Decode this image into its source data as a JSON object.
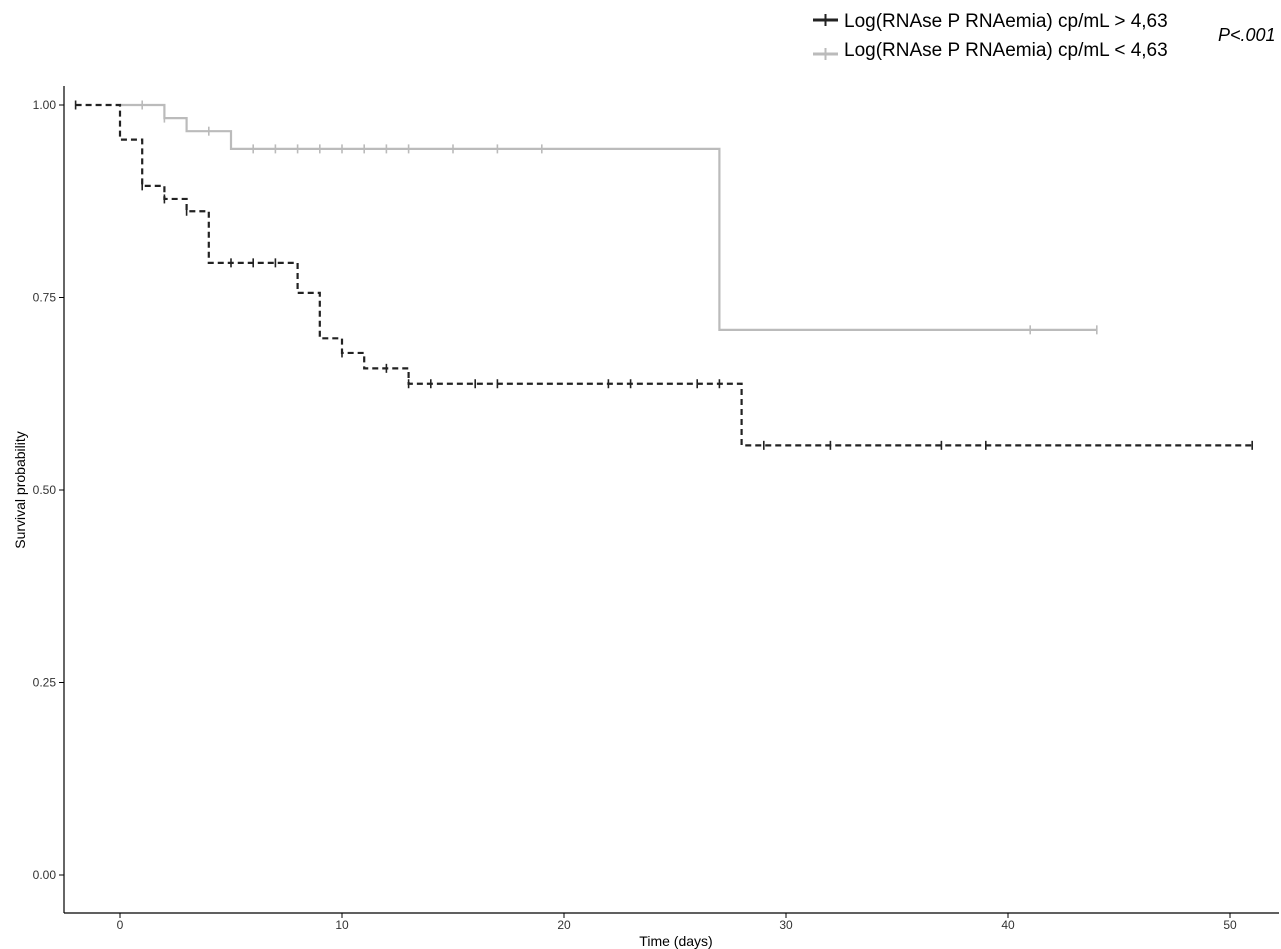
{
  "chart_data": {
    "type": "line",
    "subtype": "kaplan-meier-step",
    "xlabel": "Time (days)",
    "ylabel": "Survival probability",
    "xlim": [
      -2.5,
      52
    ],
    "ylim": [
      -0.05,
      1.025
    ],
    "x_ticks": [
      0,
      10,
      20,
      30,
      40,
      50
    ],
    "x_tick_labels": [
      "0",
      "10",
      "20",
      "30",
      "40",
      "50"
    ],
    "y_ticks": [
      0,
      0.25,
      0.5,
      0.75,
      1.0
    ],
    "y_tick_labels": [
      "0.00",
      "0.25",
      "0.50",
      "0.75",
      "1.00"
    ],
    "grid": false,
    "legend_position": "top-right",
    "annotation": "P<.001",
    "series": [
      {
        "name": "Log(RNAse P RNAemia) cp/mL > 4,63",
        "color": "#222222",
        "line_style": "dashed",
        "steps": [
          [
            -2,
            1.0
          ],
          [
            0,
            0.955
          ],
          [
            1,
            0.895
          ],
          [
            2,
            0.878
          ],
          [
            3,
            0.862
          ],
          [
            4,
            0.795
          ],
          [
            8,
            0.756
          ],
          [
            9,
            0.697
          ],
          [
            10,
            0.678
          ],
          [
            11,
            0.658
          ],
          [
            13,
            0.638
          ],
          [
            28,
            0.558
          ],
          [
            51,
            0.558
          ]
        ],
        "censored": [
          [
            -2,
            1.0
          ],
          [
            1,
            0.895
          ],
          [
            2,
            0.878
          ],
          [
            3,
            0.862
          ],
          [
            5,
            0.795
          ],
          [
            6,
            0.795
          ],
          [
            7,
            0.795
          ],
          [
            10,
            0.678
          ],
          [
            12,
            0.658
          ],
          [
            13,
            0.638
          ],
          [
            14,
            0.638
          ],
          [
            16,
            0.638
          ],
          [
            17,
            0.638
          ],
          [
            22,
            0.638
          ],
          [
            23,
            0.638
          ],
          [
            26,
            0.638
          ],
          [
            27,
            0.638
          ],
          [
            29,
            0.558
          ],
          [
            32,
            0.558
          ],
          [
            37,
            0.558
          ],
          [
            39,
            0.558
          ],
          [
            51,
            0.558
          ]
        ]
      },
      {
        "name": "Log(RNAse P RNAemia) cp/mL < 4,63",
        "color": "#bbbbbb",
        "line_style": "solid",
        "steps": [
          [
            0,
            1.0
          ],
          [
            2,
            0.983
          ],
          [
            3,
            0.966
          ],
          [
            5,
            0.943
          ],
          [
            27,
            0.708
          ],
          [
            44,
            0.708
          ]
        ],
        "censored": [
          [
            1,
            1.0
          ],
          [
            2,
            0.983
          ],
          [
            4,
            0.966
          ],
          [
            6,
            0.943
          ],
          [
            7,
            0.943
          ],
          [
            8,
            0.943
          ],
          [
            9,
            0.943
          ],
          [
            10,
            0.943
          ],
          [
            11,
            0.943
          ],
          [
            12,
            0.943
          ],
          [
            13,
            0.943
          ],
          [
            15,
            0.943
          ],
          [
            17,
            0.943
          ],
          [
            19,
            0.943
          ],
          [
            41,
            0.708
          ],
          [
            44,
            0.708
          ]
        ]
      }
    ]
  }
}
